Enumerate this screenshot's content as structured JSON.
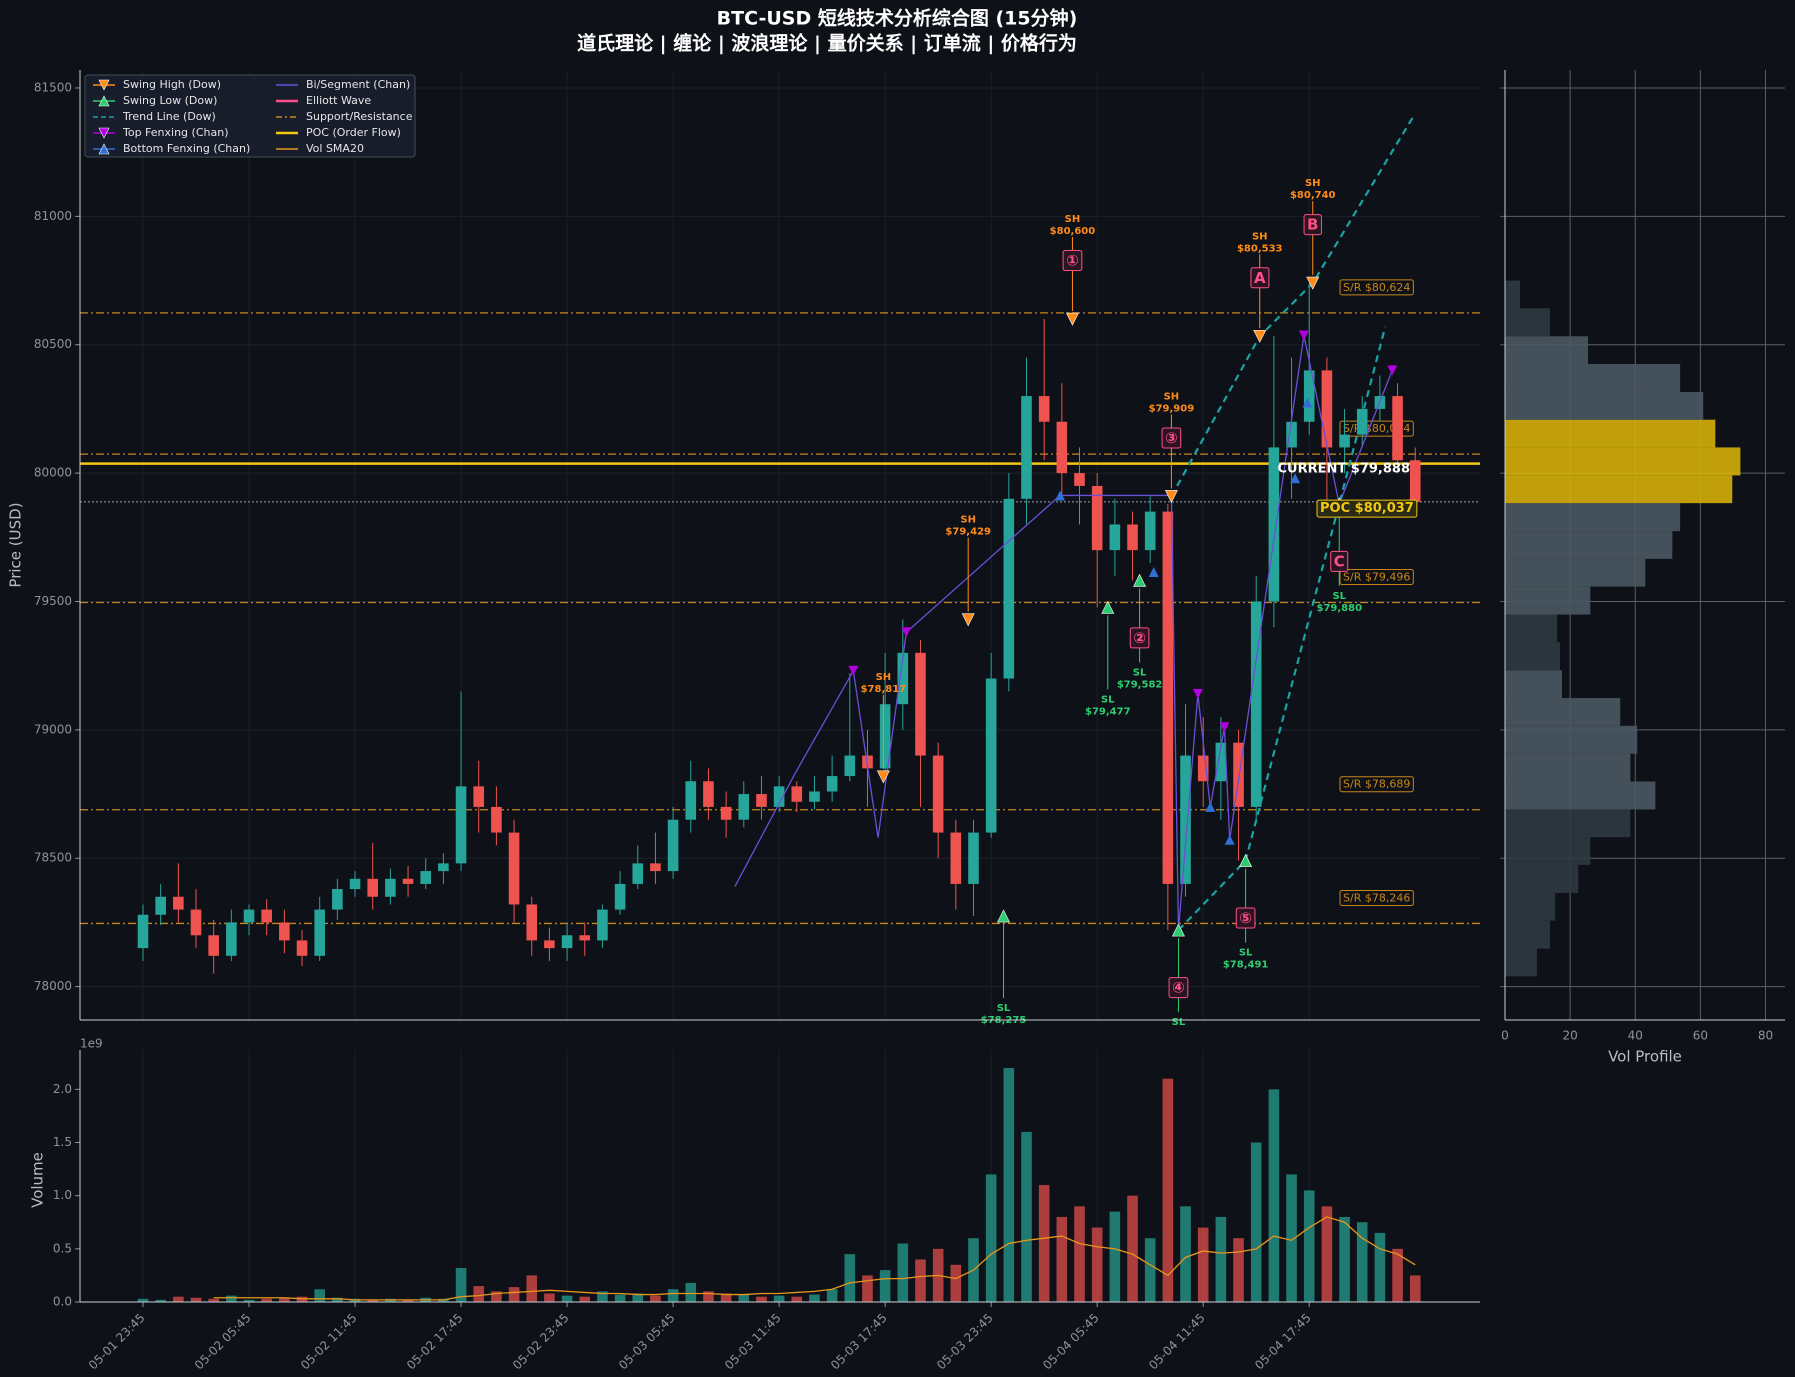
{
  "chart_data": [
    {
      "type": "candlestick",
      "title": "BTC-USD 短线技术分析综合图 (15分钟)",
      "subtitle": "道氏理论 | 缠论 | 波浪理论 | 量价关系 | 订单流 | 价格行为",
      "ylabel": "Price (USD)",
      "categories": [
        "05-01 23:45",
        null,
        null,
        null,
        null,
        null,
        "05-02 05:45",
        null,
        null,
        null,
        null,
        null,
        "05-02 11:45",
        null,
        null,
        null,
        null,
        null,
        "05-02 17:45",
        null,
        null,
        null,
        null,
        null,
        "05-02 23:45",
        null,
        null,
        null,
        null,
        null,
        "05-03 05:45",
        null,
        null,
        null,
        null,
        null,
        "05-03 11:45",
        null,
        null,
        null,
        null,
        null,
        "05-03 17:45",
        null,
        null,
        null,
        null,
        null,
        "05-03 23:45",
        null,
        null,
        null,
        null,
        null,
        "05-04 05:45",
        null,
        null,
        null,
        null,
        null,
        "05-04 11:45",
        null,
        null,
        null,
        null,
        null,
        "05-04 17:45",
        null,
        null,
        null,
        null,
        null,
        null
      ],
      "open": [
        78150,
        78280,
        78350,
        78300,
        78200,
        78120,
        78250,
        78300,
        78250,
        78180,
        78120,
        78300,
        78380,
        78420,
        78350,
        78420,
        78400,
        78450,
        78480,
        78780,
        78700,
        78600,
        78320,
        78180,
        78150,
        78200,
        78180,
        78300,
        78400,
        78480,
        78450,
        78650,
        78800,
        78700,
        78650,
        78750,
        78700,
        78780,
        78720,
        78760,
        78820,
        78900,
        78850,
        79100,
        79300,
        78900,
        78600,
        78400,
        78600,
        79200,
        79900,
        80300,
        80200,
        80000,
        79950,
        79700,
        79800,
        79700,
        79850,
        78400,
        78900,
        78800,
        78950,
        78700,
        79500,
        80100,
        80200,
        80400,
        80100,
        80150,
        80250,
        80300,
        80050
      ],
      "high": [
        78320,
        78400,
        78480,
        78380,
        78260,
        78300,
        78320,
        78340,
        78300,
        78220,
        78350,
        78420,
        78450,
        78560,
        78460,
        78470,
        78500,
        78520,
        79150,
        78880,
        78780,
        78650,
        78350,
        78230,
        78250,
        78250,
        78320,
        78450,
        78550,
        78600,
        78700,
        78880,
        78850,
        78760,
        78800,
        78820,
        78820,
        78800,
        78820,
        78900,
        79220,
        79000,
        79300,
        79430,
        79350,
        78950,
        78650,
        78650,
        79300,
        80000,
        80450,
        80600,
        80350,
        80100,
        80000,
        79900,
        79850,
        79909,
        79880,
        79100,
        79050,
        79050,
        79000,
        79600,
        80533,
        80450,
        80740,
        80450,
        80250,
        80300,
        80380,
        80350,
        80100
      ],
      "low": [
        78100,
        78240,
        78250,
        78150,
        78050,
        78100,
        78200,
        78200,
        78130,
        78080,
        78100,
        78260,
        78350,
        78300,
        78320,
        78350,
        78380,
        78400,
        78450,
        78600,
        78550,
        78250,
        78120,
        78100,
        78100,
        78120,
        78150,
        78280,
        78380,
        78400,
        78420,
        78600,
        78650,
        78580,
        78620,
        78650,
        78680,
        78680,
        78690,
        78720,
        78800,
        78700,
        78820,
        79000,
        78700,
        78500,
        78300,
        78275,
        78580,
        79150,
        79800,
        80050,
        79900,
        79800,
        79477,
        79600,
        79582,
        79650,
        78220,
        78350,
        78700,
        78650,
        78491,
        78650,
        79400,
        79900,
        80150,
        79880,
        80000,
        80100,
        80200,
        80000,
        79850
      ],
      "close": [
        78280,
        78350,
        78300,
        78200,
        78120,
        78250,
        78300,
        78250,
        78180,
        78120,
        78300,
        78380,
        78420,
        78350,
        78420,
        78400,
        78450,
        78480,
        78780,
        78700,
        78600,
        78320,
        78180,
        78150,
        78200,
        78180,
        78300,
        78400,
        78480,
        78450,
        78650,
        78800,
        78700,
        78650,
        78750,
        78700,
        78780,
        78720,
        78760,
        78820,
        78900,
        78850,
        79100,
        79300,
        78900,
        78600,
        78400,
        78600,
        79200,
        79900,
        80300,
        80200,
        80000,
        79950,
        79700,
        79800,
        79700,
        79850,
        78400,
        78900,
        78800,
        78950,
        78700,
        79500,
        80100,
        80200,
        80400,
        80100,
        80150,
        80250,
        80300,
        80050,
        79888
      ],
      "up_color": "#26a69a",
      "down_color": "#ef5350",
      "ylim": [
        77870,
        81570
      ],
      "yticks": [
        78000,
        78500,
        79000,
        79500,
        80000,
        80500,
        81000,
        81500
      ],
      "grid": true,
      "legend_position": "upper left",
      "swing_highs": {
        "name": "Swing High (Dow)",
        "color": "#ff8c1a",
        "points": [
          {
            "x": 41.9,
            "value": 78817,
            "tag": "SH",
            "label": "$78,817"
          },
          {
            "x": 46.7,
            "value": 79429,
            "tag": "SH",
            "label": "$79,429"
          },
          {
            "x": 52.6,
            "value": 80600,
            "tag": "SH",
            "label": "$80,600",
            "wave": "①"
          },
          {
            "x": 58.2,
            "value": 79909,
            "tag": "SH",
            "label": "$79,909",
            "wave": "③"
          },
          {
            "x": 63.2,
            "value": 80533,
            "tag": "SH",
            "label": "$80,533",
            "wave": "A"
          },
          {
            "x": 66.2,
            "value": 80740,
            "tag": "SH",
            "label": "$80,740",
            "wave": "B"
          }
        ]
      },
      "swing_lows": {
        "name": "Swing Low (Dow)",
        "color": "#2ecc71",
        "points": [
          {
            "x": 48.7,
            "value": 78275,
            "tag": "SL",
            "label": "$78,275"
          },
          {
            "x": 54.6,
            "value": 79477,
            "tag": "SL",
            "label": "$79,477"
          },
          {
            "x": 56.4,
            "value": 79582,
            "tag": "SL",
            "label": "$79,582",
            "wave": "②"
          },
          {
            "x": 58.6,
            "value": 78220,
            "tag": "SL",
            "wave": "④"
          },
          {
            "x": 62.4,
            "value": 78491,
            "tag": "SL",
            "label": "$78,491",
            "wave": "⑤"
          },
          {
            "x": 67.7,
            "value": 79880,
            "tag": "SL",
            "label": "$79,880",
            "wave": "C"
          }
        ]
      },
      "trend_lines": {
        "name": "Trend Line (Dow)",
        "color": "#1aa3a3",
        "lines": [
          {
            "x": [
              58.2,
              63.2,
              66.2,
              71.9
            ],
            "values": [
              79909,
              80533,
              80740,
              81390
            ]
          },
          {
            "x": [
              58.6,
              62.4,
              67.7,
              70.3
            ],
            "values": [
              78220,
              78491,
              79880,
              80570
            ]
          }
        ]
      },
      "top_fenxing": {
        "name": "Top Fenxing (Chan)",
        "color": "#b000e0",
        "x": [
          40.2,
          43.2,
          59.7,
          61.2,
          65.7,
          70.7
        ],
        "values": [
          79230,
          79380,
          79140,
          79010,
          80536,
          80400
        ]
      },
      "bottom_fenxing": {
        "name": "Bottom Fenxing (Chan)",
        "color": "#2f6fd6",
        "x": [
          51.9,
          57.2,
          60.4,
          61.5,
          65.2,
          65.9
        ],
        "values": [
          79913,
          79615,
          78700,
          78572,
          79980,
          80275
        ]
      },
      "bi": {
        "name": "Bi/Segment (Chan)",
        "color": "#6a4fd8",
        "x": [
          33.5,
          36.9,
          40.2,
          41.6,
          43.2,
          51.9,
          58.2,
          58.6,
          59.7,
          60.4,
          61.2,
          61.5,
          65.7,
          67.7,
          70.7
        ],
        "values": [
          78390,
          78830,
          79230,
          78580,
          79380,
          79913,
          79913,
          78220,
          79140,
          78700,
          79010,
          78572,
          80536,
          79880,
          80400
        ]
      },
      "elliott": {
        "name": "Elliott Wave",
        "color": "#ff4f8b"
      },
      "levels": {
        "name": "Support/Resistance",
        "color": "#c8861a",
        "items": [
          {
            "value": 80624,
            "label": "S/R $80,624"
          },
          {
            "value": 80074,
            "label": "S/R $80,074"
          },
          {
            "value": 79496,
            "label": "S/R $79,496"
          },
          {
            "value": 78689,
            "label": "S/R $78,689"
          },
          {
            "value": 78246,
            "label": "S/R $78,246"
          }
        ]
      },
      "poc": {
        "name": "POC (Order Flow)",
        "color": "#f2c811",
        "value": 80037,
        "label": "POC $80,037"
      },
      "current": {
        "value": 79888,
        "label": "CURRENT $79,888",
        "color": "#9aa3ad"
      }
    },
    {
      "type": "bar",
      "ylabel": "Volume",
      "scale_label": "1e9",
      "values": [
        0.03,
        0.02,
        0.05,
        0.04,
        0.03,
        0.06,
        0.02,
        0.03,
        0.04,
        0.05,
        0.12,
        0.04,
        0.03,
        0.02,
        0.03,
        0.02,
        0.04,
        0.03,
        0.32,
        0.15,
        0.1,
        0.14,
        0.25,
        0.08,
        0.06,
        0.05,
        0.1,
        0.07,
        0.08,
        0.06,
        0.12,
        0.18,
        0.1,
        0.08,
        0.07,
        0.05,
        0.06,
        0.05,
        0.07,
        0.12,
        0.45,
        0.25,
        0.3,
        0.55,
        0.4,
        0.5,
        0.35,
        0.6,
        1.2,
        2.2,
        1.6,
        1.1,
        0.8,
        0.9,
        0.7,
        0.85,
        1.0,
        0.6,
        2.1,
        0.9,
        0.7,
        0.8,
        0.6,
        1.5,
        2.0,
        1.2,
        1.05,
        0.9,
        0.8,
        0.75,
        0.65,
        0.5,
        0.25
      ],
      "sma": {
        "name": "Vol SMA20",
        "color": "#e8961a",
        "values": [
          null,
          null,
          null,
          null,
          0.04,
          0.04,
          0.04,
          0.04,
          0.04,
          0.03,
          0.03,
          0.03,
          0.02,
          0.02,
          0.02,
          0.02,
          0.02,
          0.02,
          0.05,
          0.06,
          0.08,
          0.09,
          0.1,
          0.11,
          0.1,
          0.09,
          0.08,
          0.08,
          0.07,
          0.07,
          0.08,
          0.08,
          0.08,
          0.07,
          0.07,
          0.08,
          0.08,
          0.09,
          0.1,
          0.12,
          0.18,
          0.2,
          0.22,
          0.22,
          0.24,
          0.25,
          0.22,
          0.3,
          0.45,
          0.55,
          0.58,
          0.6,
          0.62,
          0.55,
          0.52,
          0.5,
          0.45,
          0.35,
          0.25,
          0.42,
          0.48,
          0.46,
          0.47,
          0.5,
          0.62,
          0.58,
          0.7,
          0.8,
          0.75,
          0.6,
          0.5,
          0.45,
          0.35
        ]
      },
      "ylim": [
        0,
        2.37
      ],
      "yticks": [
        {
          "value": 0,
          "label": "0.0"
        },
        0.5,
        {
          "value": 1,
          "label": "1.0"
        },
        1.5,
        {
          "value": 2,
          "label": "2.0"
        }
      ]
    },
    {
      "type": "histogram",
      "orientation": "horizontal",
      "xlabel": "Vol Profile",
      "bins": [
        78040,
        78148,
        78257,
        78365,
        78474,
        78582,
        78690,
        78799,
        78907,
        79016,
        79124,
        79232,
        79341,
        79449,
        79558,
        79666,
        79774,
        79883,
        79991,
        80100,
        80208,
        80316,
        80425,
        80533,
        80642,
        80750
      ],
      "values": [
        9.8,
        13.8,
        15.4,
        22.5,
        26.2,
        38.5,
        46.2,
        38.5,
        40.6,
        35.4,
        17.5,
        16.9,
        16.0,
        26.2,
        43.1,
        51.4,
        53.8,
        69.8,
        72.3,
        64.6,
        60.9,
        53.8,
        25.5,
        13.8,
        4.6
      ],
      "colors": [
        "#2f3a42",
        "#2f3a42",
        "#2f3a42",
        "#2f3a42",
        "#2f3a42",
        "#2f3a42",
        "#4a5862",
        "#4a5862",
        "#4a5862",
        "#4a5862",
        "#4a5862",
        "#2f3a42",
        "#2f3a42",
        "#4a5862",
        "#4a5862",
        "#4a5862",
        "#4a5862",
        "#d4af0a",
        "#d4af0a",
        "#d4af0a",
        "#4a5862",
        "#4a5862",
        "#4a5862",
        "#2f3a42",
        "#2f3a42"
      ],
      "xlim": [
        0,
        86
      ],
      "xticks": [
        0,
        20,
        40,
        60,
        80
      ]
    }
  ]
}
